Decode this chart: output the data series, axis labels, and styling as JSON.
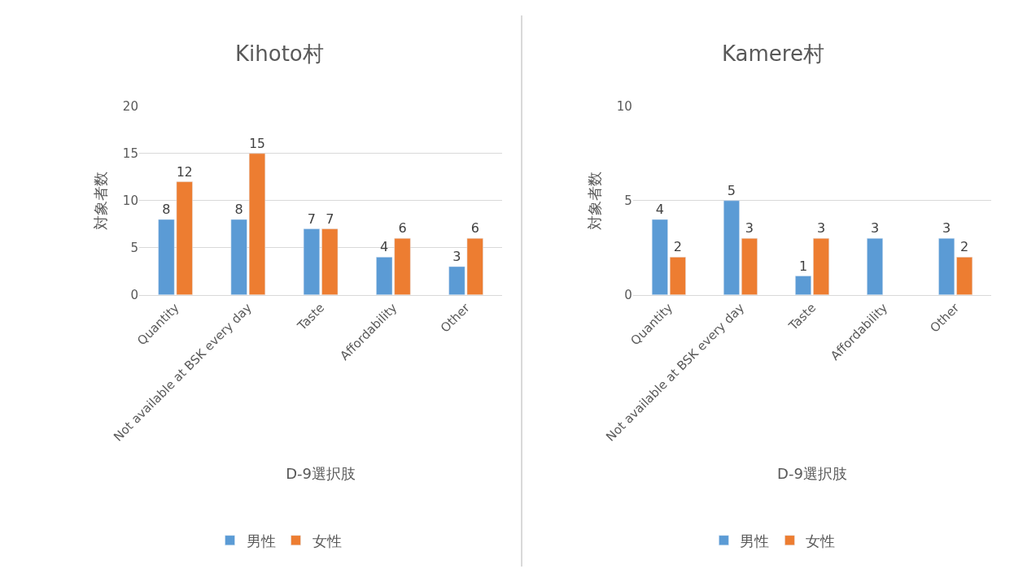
{
  "chart_data": [
    {
      "type": "bar",
      "title": "Kihoto村",
      "xlabel": "D-9選択肢",
      "ylabel": "対象者数",
      "categories": [
        "Quantity",
        "Not available at BSK every day",
        "Taste",
        "Affordability",
        "Other"
      ],
      "series": [
        {
          "name": "男性",
          "color": "#5b9bd5",
          "values": [
            8,
            8,
            7,
            4,
            3
          ]
        },
        {
          "name": "女性",
          "color": "#ed7d31",
          "values": [
            12,
            15,
            7,
            6,
            6
          ]
        }
      ],
      "ylim": [
        0,
        20
      ],
      "yticks": [
        0,
        5,
        10,
        15,
        20
      ],
      "grid": "y",
      "legend": "bottom",
      "data_labels": true
    },
    {
      "type": "bar",
      "title": "Kamere村",
      "xlabel": "D-9選択肢",
      "ylabel": "対象者数",
      "categories": [
        "Quantity",
        "Not available at BSK every day",
        "Taste",
        "Affordability",
        "Other"
      ],
      "series": [
        {
          "name": "男性",
          "color": "#5b9bd5",
          "values": [
            4,
            5,
            1,
            3,
            3
          ]
        },
        {
          "name": "女性",
          "color": "#ed7d31",
          "values": [
            2,
            3,
            3,
            null,
            2
          ]
        }
      ],
      "ylim": [
        0,
        10
      ],
      "yticks": [
        0,
        5,
        10
      ],
      "grid": "y",
      "legend": "bottom",
      "data_labels": true
    }
  ]
}
